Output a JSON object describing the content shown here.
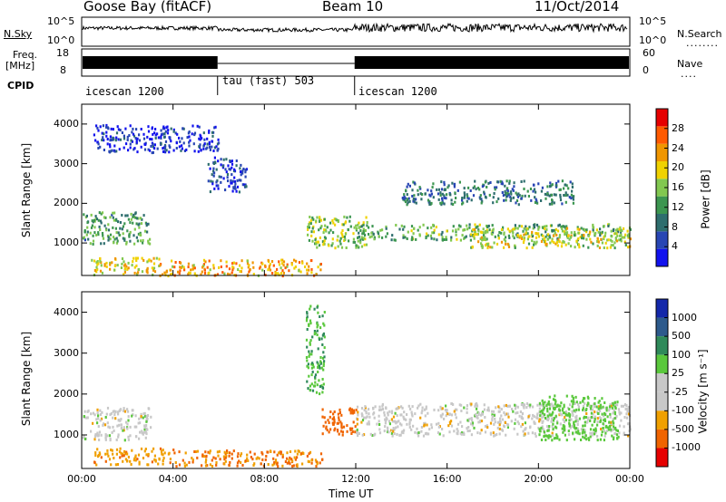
{
  "header": {
    "title": "Goose Bay (fitACF)",
    "beam": "Beam 10",
    "date": "11/Oct/2014"
  },
  "status_panels": {
    "nsky_label": "N.Sky",
    "nsky_ticks": [
      "10^5",
      "10^0"
    ],
    "nsearch_label": "N.Search",
    "nsearch_ticks": [
      "10^5",
      "10^0"
    ],
    "freq_label_1": "Freq.",
    "freq_label_2": "[MHz]",
    "freq_ticks": [
      "18",
      "8"
    ],
    "nave_label": "Nave",
    "nave_ticks": [
      "60",
      "0"
    ],
    "cpid_label": "CPID",
    "cpid_segments": [
      {
        "label": "icescan 1200",
        "start_hour": 0,
        "end_hour": 5.95
      },
      {
        "label": "tau (fast) 503",
        "start_hour": 5.95,
        "end_hour": 11.95
      },
      {
        "label": "icescan 1200",
        "start_hour": 11.95,
        "end_hour": 24
      }
    ]
  },
  "chart_data": [
    {
      "type": "heatmap",
      "title": "",
      "xlabel": "Time UT",
      "ylabel": "Slant Range [km]",
      "xlim": [
        0,
        24
      ],
      "ylim": [
        180,
        4500
      ],
      "x_ticks": [
        "00:00",
        "04:00",
        "08:00",
        "12:00",
        "16:00",
        "20:00",
        "00:00"
      ],
      "y_ticks": [
        1000,
        2000,
        3000,
        4000
      ],
      "colorbar": {
        "label": "Power [dB]",
        "ticks": [
          4,
          8,
          12,
          16,
          20,
          24,
          28
        ],
        "range": [
          0,
          32
        ],
        "colors": [
          "#1212ee",
          "#2846b4",
          "#2e6e6e",
          "#3c9650",
          "#82c850",
          "#f0d200",
          "#f09600",
          "#ff5a00",
          "#e60000"
        ]
      },
      "echo_regions": [
        {
          "start_hour": 0.4,
          "end_hour": 4.0,
          "range_min_km": 200,
          "range_max_km": 650,
          "power_db": 20
        },
        {
          "start_hour": 4.0,
          "end_hour": 10.5,
          "range_min_km": 200,
          "range_max_km": 600,
          "power_db": 22
        },
        {
          "start_hour": 0.0,
          "end_hour": 3.0,
          "range_min_km": 1000,
          "range_max_km": 1800,
          "power_db": 12
        },
        {
          "start_hour": 9.8,
          "end_hour": 12.5,
          "range_min_km": 900,
          "range_max_km": 1700,
          "power_db": 16
        },
        {
          "start_hour": 12.0,
          "end_hour": 24.0,
          "range_min_km": 1100,
          "range_max_km": 1500,
          "power_db": 14
        },
        {
          "start_hour": 17.0,
          "end_hour": 24.0,
          "range_min_km": 900,
          "range_max_km": 1400,
          "power_db": 18
        },
        {
          "start_hour": 14.0,
          "end_hour": 21.5,
          "range_min_km": 2000,
          "range_max_km": 2600,
          "power_db": 9
        },
        {
          "start_hour": 0.5,
          "end_hour": 6.0,
          "range_min_km": 3300,
          "range_max_km": 4000,
          "power_db": 4
        },
        {
          "start_hour": 5.5,
          "end_hour": 7.2,
          "range_min_km": 2300,
          "range_max_km": 3200,
          "power_db": 5
        }
      ]
    },
    {
      "type": "heatmap",
      "title": "",
      "xlabel": "Time UT",
      "ylabel": "Slant Range [km]",
      "xlim": [
        0,
        24
      ],
      "ylim": [
        180,
        4500
      ],
      "x_ticks": [
        "00:00",
        "04:00",
        "08:00",
        "12:00",
        "16:00",
        "20:00",
        "00:00"
      ],
      "y_ticks": [
        1000,
        2000,
        3000,
        4000
      ],
      "colorbar": {
        "label": "Velocity [m s⁻¹]",
        "ticks": [
          "1000",
          "500",
          "100",
          "25",
          "-25",
          "-100",
          "-500",
          "-1000"
        ],
        "colors": [
          "#1428aa",
          "#2d5a8c",
          "#2f8a5a",
          "#5ac83c",
          "#c8c8c8",
          "#c8c8c8",
          "#f0a000",
          "#f06400",
          "#e60000"
        ]
      },
      "echo_regions": [
        {
          "start_hour": 4.0,
          "end_hour": 10.5,
          "range_min_km": 250,
          "range_max_km": 650,
          "velocity_ms": -100
        },
        {
          "start_hour": 0.5,
          "end_hour": 4.0,
          "range_min_km": 300,
          "range_max_km": 700,
          "velocity_ms": -80
        },
        {
          "start_hour": 10.5,
          "end_hour": 12.0,
          "range_min_km": 1000,
          "range_max_km": 1700,
          "velocity_ms": -300
        },
        {
          "start_hour": 12.0,
          "end_hour": 24.0,
          "range_min_km": 1000,
          "range_max_km": 1800,
          "velocity_ms": 0
        },
        {
          "start_hour": 0.0,
          "end_hour": 3.0,
          "range_min_km": 900,
          "range_max_km": 1700,
          "velocity_ms": 0
        },
        {
          "start_hour": 20.0,
          "end_hour": 23.5,
          "range_min_km": 900,
          "range_max_km": 2000,
          "velocity_ms": 60
        },
        {
          "start_hour": 9.8,
          "end_hour": 10.6,
          "range_min_km": 2000,
          "range_max_km": 4200,
          "velocity_ms": 90
        }
      ]
    }
  ]
}
